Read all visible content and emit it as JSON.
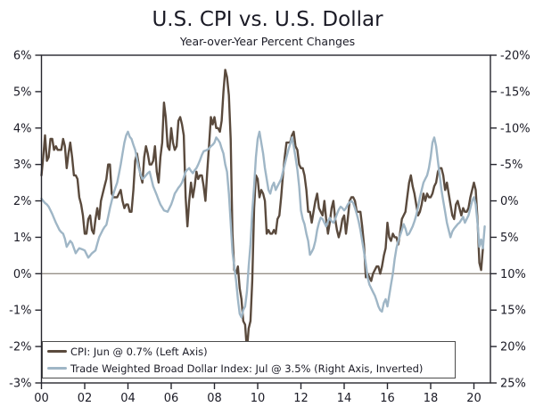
{
  "chart": {
    "colors": {
      "text": "#1b1b26",
      "frame": "#26262e",
      "gridline": "#979089",
      "cpi_line": "#5a4a3d",
      "dollar_line": "#9fb6c6",
      "legend_border": "#4c4c4c",
      "background": "#ffffff"
    }
  },
  "chart_data": {
    "type": "line",
    "title": "U.S. CPI vs. U.S. Dollar",
    "subtitle": "Year-over-Year Percent Changes",
    "grid": "single horizontal line at left 0% / right 10%",
    "legend_position": "bottom-left inside plot",
    "x_axis": {
      "tick_labels": [
        "00",
        "02",
        "04",
        "06",
        "08",
        "10",
        "12",
        "14",
        "16",
        "18",
        "20"
      ],
      "tick_years": [
        2000,
        2002,
        2004,
        2006,
        2008,
        2010,
        2012,
        2014,
        2016,
        2018,
        2020
      ],
      "x_min": 2000.0,
      "x_max": 2020.77,
      "unit": "year (monthly data)"
    },
    "left_axis": {
      "tick_labels": [
        "6%",
        "5%",
        "4%",
        "3%",
        "2%",
        "1%",
        "0%",
        "-1%",
        "-2%",
        "-3%"
      ],
      "tick_values": [
        6,
        5,
        4,
        3,
        2,
        1,
        0,
        -1,
        -2,
        -3
      ],
      "min": -3,
      "max": 6,
      "unit": "percent"
    },
    "right_axis": {
      "tick_labels": [
        "-20%",
        "-15%",
        "-10%",
        "-5%",
        "0%",
        "5%",
        "10%",
        "15%",
        "20%",
        "25%"
      ],
      "tick_values": [
        -20,
        -15,
        -10,
        -5,
        0,
        5,
        10,
        15,
        20,
        25
      ],
      "min": -20,
      "max": 25,
      "inverted": true,
      "unit": "percent"
    },
    "gridline_at_left_value": 0,
    "series": [
      {
        "name": "CPI: Jun @ 0.7% (Left Axis)",
        "axis": "left",
        "color": "#5a4a3d",
        "start_month": "2000-01",
        "end_month": "2020-06",
        "values": [
          2.7,
          3.2,
          3.8,
          3.1,
          3.2,
          3.7,
          3.7,
          3.4,
          3.5,
          3.4,
          3.4,
          3.4,
          3.7,
          3.5,
          2.9,
          3.3,
          3.6,
          3.2,
          2.7,
          2.7,
          2.6,
          2.1,
          1.9,
          1.6,
          1.1,
          1.1,
          1.5,
          1.6,
          1.2,
          1.1,
          1.5,
          1.8,
          1.5,
          2.0,
          2.2,
          2.4,
          2.6,
          3.0,
          3.0,
          2.2,
          2.1,
          2.1,
          2.1,
          2.2,
          2.3,
          2.0,
          1.8,
          1.9,
          1.9,
          1.7,
          1.7,
          2.3,
          3.1,
          3.3,
          3.0,
          2.7,
          2.5,
          3.2,
          3.5,
          3.3,
          3.0,
          3.0,
          3.1,
          3.5,
          2.8,
          2.5,
          3.2,
          3.6,
          4.7,
          4.3,
          3.5,
          3.4,
          4.0,
          3.6,
          3.4,
          3.5,
          4.2,
          4.3,
          4.1,
          3.8,
          2.1,
          1.3,
          2.0,
          2.5,
          2.1,
          2.4,
          2.8,
          2.6,
          2.7,
          2.7,
          2.4,
          2.0,
          2.8,
          3.5,
          4.3,
          4.1,
          4.3,
          4.0,
          4.0,
          3.9,
          4.2,
          5.0,
          5.6,
          5.4,
          4.9,
          3.7,
          1.1,
          0.1,
          0.0,
          0.2,
          -0.4,
          -0.7,
          -1.3,
          -1.4,
          -2.1,
          -1.5,
          -1.3,
          -0.2,
          1.8,
          2.7,
          2.6,
          2.1,
          2.3,
          2.2,
          2.0,
          1.1,
          1.2,
          1.1,
          1.1,
          1.2,
          1.1,
          1.5,
          1.6,
          2.1,
          2.7,
          3.2,
          3.6,
          3.6,
          3.6,
          3.8,
          3.9,
          3.5,
          3.4,
          3.0,
          2.9,
          2.9,
          2.7,
          2.3,
          1.7,
          1.7,
          1.4,
          1.7,
          2.0,
          2.2,
          1.8,
          1.7,
          1.6,
          2.0,
          1.5,
          1.1,
          1.4,
          1.8,
          2.0,
          1.5,
          1.2,
          1.0,
          1.2,
          1.5,
          1.6,
          1.1,
          1.5,
          2.0,
          2.1,
          2.1,
          2.0,
          1.7,
          1.7,
          1.7,
          1.3,
          0.8,
          -0.1,
          0.0,
          -0.1,
          -0.2,
          0.0,
          0.1,
          0.2,
          0.2,
          0.0,
          0.2,
          0.5,
          0.7,
          1.4,
          1.0,
          0.9,
          1.1,
          1.0,
          1.0,
          0.8,
          1.1,
          1.5,
          1.6,
          1.7,
          2.1,
          2.5,
          2.7,
          2.4,
          2.2,
          1.9,
          1.6,
          1.7,
          1.9,
          2.2,
          2.0,
          2.2,
          2.1,
          2.1,
          2.2,
          2.4,
          2.5,
          2.8,
          2.9,
          2.9,
          2.7,
          2.3,
          2.5,
          2.2,
          1.9,
          1.6,
          1.5,
          1.9,
          2.0,
          1.8,
          1.6,
          1.8,
          1.7,
          1.7,
          1.8,
          2.1,
          2.3,
          2.5,
          2.3,
          1.5,
          0.3,
          0.1,
          0.7
        ]
      },
      {
        "name": "Trade Weighted Broad Dollar Index: Jul @ 3.5% (Right Axis, Inverted)",
        "axis": "right",
        "color": "#9fb6c6",
        "start_month": "2000-01",
        "end_month": "2020-07",
        "values": [
          -0.3,
          0.0,
          0.3,
          0.5,
          0.8,
          1.3,
          1.8,
          2.4,
          3.0,
          3.5,
          4.0,
          4.3,
          4.5,
          5.2,
          6.3,
          5.9,
          5.5,
          5.8,
          6.5,
          7.2,
          6.8,
          6.5,
          6.6,
          6.7,
          6.8,
          7.3,
          7.8,
          7.5,
          7.2,
          7.0,
          6.8,
          5.9,
          5.0,
          4.5,
          4.0,
          3.6,
          3.3,
          2.2,
          1.0,
          0.0,
          -1.0,
          -1.8,
          -2.5,
          -3.7,
          -5.0,
          -6.5,
          -8.0,
          -9.0,
          -9.5,
          -8.8,
          -8.5,
          -7.7,
          -7.0,
          -5.8,
          -4.5,
          -3.7,
          -3.0,
          -3.2,
          -3.5,
          -3.8,
          -4.0,
          -3.0,
          -2.0,
          -1.4,
          -0.8,
          -0.1,
          0.5,
          0.9,
          1.3,
          1.4,
          1.5,
          1.0,
          0.5,
          -0.2,
          -1.0,
          -1.4,
          -1.8,
          -2.1,
          -2.5,
          -3.2,
          -4.0,
          -4.3,
          -4.5,
          -4.1,
          -3.8,
          -4.2,
          -4.5,
          -5.0,
          -5.6,
          -6.3,
          -6.8,
          -6.9,
          -7.0,
          -7.2,
          -7.5,
          -7.7,
          -8.0,
          -8.7,
          -8.4,
          -8.0,
          -7.2,
          -6.5,
          -5.0,
          -4.0,
          -1.0,
          3.0,
          7.0,
          9.0,
          11.0,
          13.5,
          15.5,
          16.0,
          15.0,
          14.5,
          12.5,
          9.0,
          6.0,
          1.5,
          -2.0,
          -6.0,
          -8.5,
          -9.5,
          -8.0,
          -6.5,
          -4.5,
          -3.0,
          -1.5,
          -1.0,
          -2.0,
          -2.5,
          -1.5,
          -2.0,
          -2.5,
          -3.0,
          -4.0,
          -5.0,
          -6.0,
          -7.0,
          -7.8,
          -8.7,
          -7.5,
          -6.0,
          -4.3,
          -2.0,
          1.3,
          2.5,
          3.2,
          4.5,
          5.5,
          7.4,
          7.0,
          6.5,
          5.5,
          4.0,
          3.0,
          2.3,
          2.5,
          3.0,
          3.5,
          2.8,
          2.3,
          2.8,
          3.0,
          2.5,
          1.8,
          1.2,
          0.8,
          1.0,
          1.3,
          1.0,
          0.5,
          0.2,
          0.0,
          0.3,
          1.0,
          1.8,
          2.8,
          4.0,
          5.5,
          7.0,
          8.7,
          10.5,
          11.5,
          12.0,
          12.5,
          13.0,
          13.7,
          14.5,
          15.0,
          15.2,
          14.0,
          13.5,
          14.5,
          13.0,
          11.5,
          10.0,
          8.0,
          6.5,
          5.5,
          4.8,
          4.0,
          3.2,
          3.8,
          4.7,
          4.5,
          4.0,
          3.5,
          2.8,
          2.0,
          0.8,
          -0.5,
          -1.5,
          -2.5,
          -3.0,
          -3.5,
          -4.5,
          -6.0,
          -8.0,
          -8.7,
          -7.5,
          -5.5,
          -3.5,
          -1.5,
          0.0,
          1.5,
          3.0,
          4.0,
          5.0,
          4.2,
          3.8,
          3.5,
          3.2,
          3.0,
          2.6,
          2.2,
          3.0,
          2.5,
          2.0,
          1.0,
          0.0,
          -0.5,
          0.5,
          3.0,
          6.3,
          5.3,
          6.5,
          3.5
        ]
      }
    ]
  }
}
